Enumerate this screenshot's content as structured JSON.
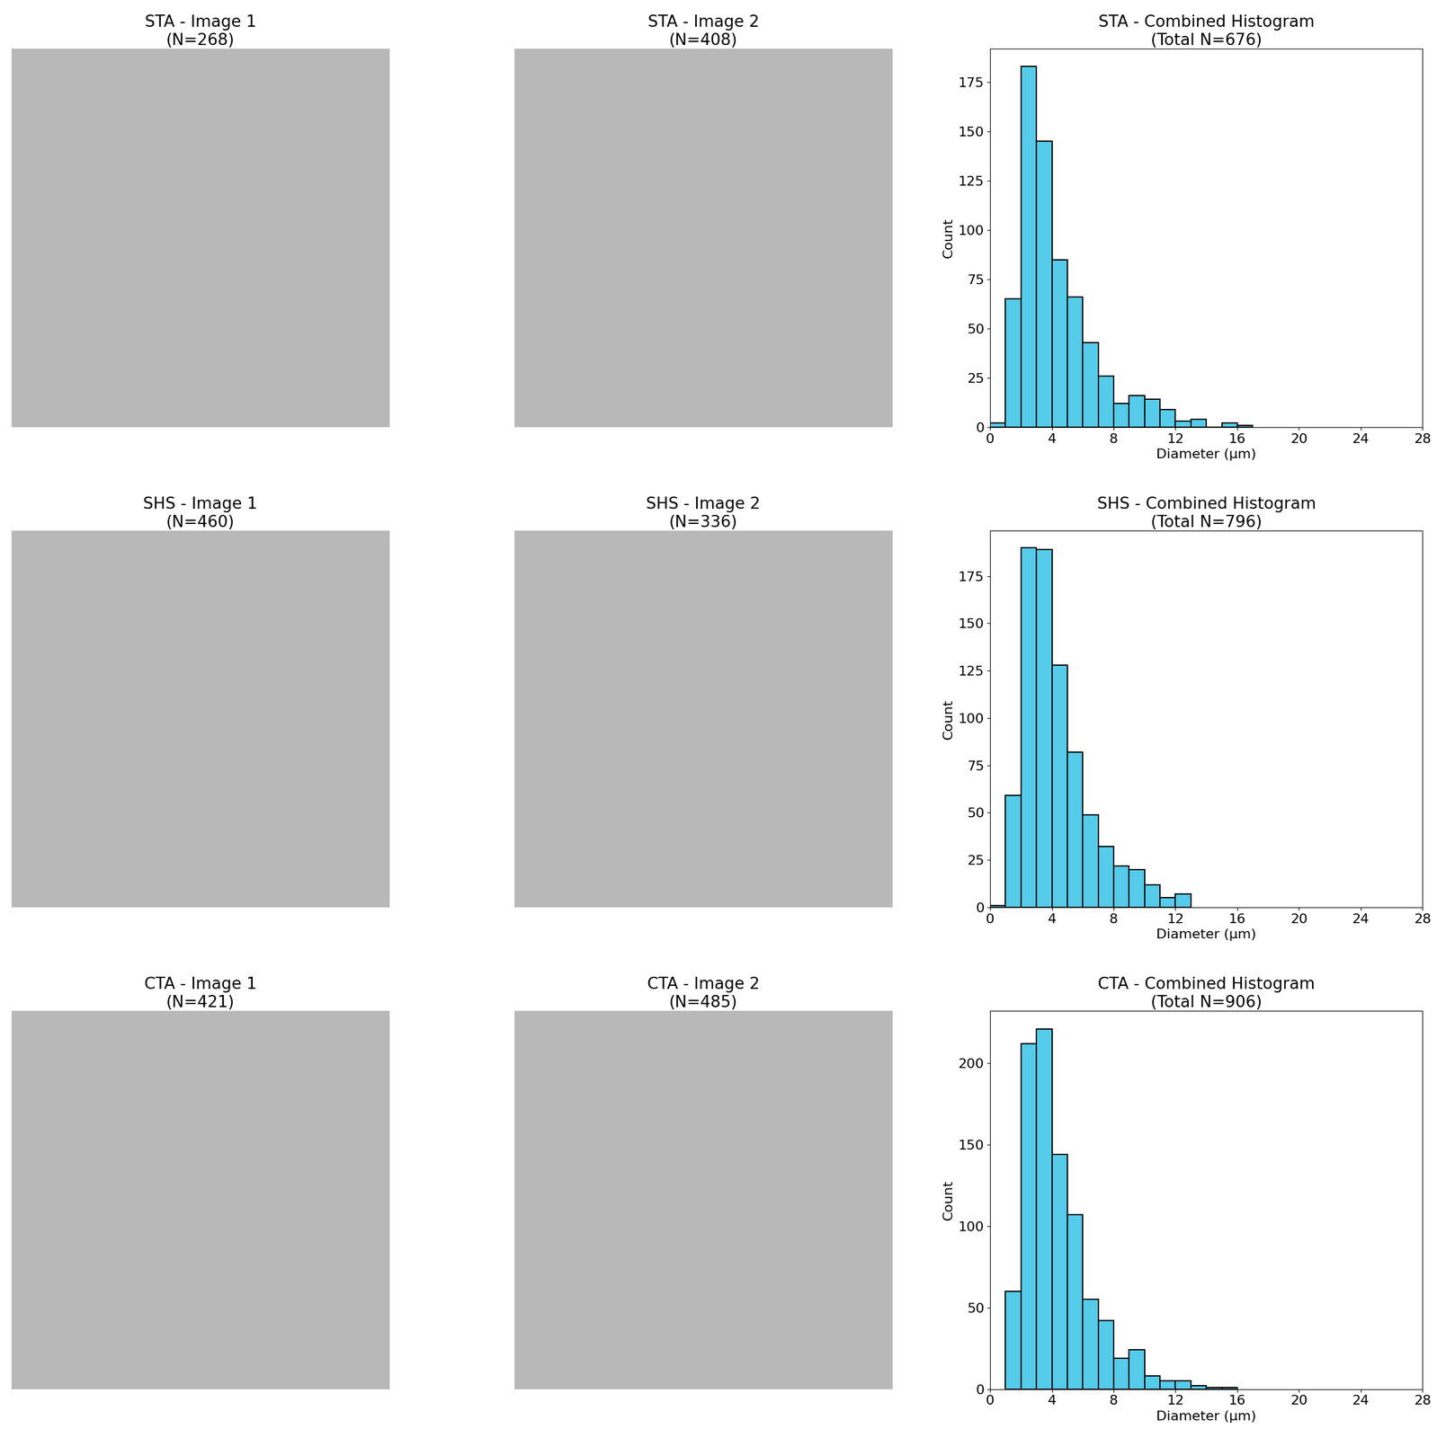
{
  "chart_data": [
    {
      "type": "image",
      "title": "STA - Image 1\n(N=268)"
    },
    {
      "type": "image",
      "title": "STA - Image 2\n(N=408)"
    },
    {
      "type": "histogram",
      "title": "STA - Combined Histogram\n(Total N=676)",
      "x_label": "Diameter (µm)",
      "y_label": "Count",
      "bins": [
        0,
        1,
        2,
        3,
        4,
        5,
        6,
        7,
        8,
        9,
        10,
        11,
        12,
        13,
        14,
        15,
        16,
        17
      ],
      "values": [
        2,
        65,
        183,
        145,
        85,
        66,
        43,
        26,
        12,
        16,
        14,
        9,
        3,
        4,
        0,
        2,
        1
      ],
      "color": "#56cbea",
      "xlim": [
        0,
        28
      ],
      "xticks": [
        0,
        4,
        8,
        12,
        16,
        20,
        24,
        28
      ],
      "ylim": [
        0,
        192
      ],
      "yticks": [
        0,
        25,
        50,
        75,
        100,
        125,
        150,
        175
      ]
    },
    {
      "type": "image",
      "title": "SHS - Image 1\n(N=460)"
    },
    {
      "type": "image",
      "title": "SHS - Image 2\n(N=336)"
    },
    {
      "type": "histogram",
      "title": "SHS - Combined Histogram\n(Total N=796)",
      "x_label": "Diameter (µm)",
      "y_label": "Count",
      "bins": [
        0,
        1,
        2,
        3,
        4,
        5,
        6,
        7,
        8,
        9,
        10,
        11,
        12,
        13
      ],
      "values": [
        1,
        59,
        190,
        189,
        128,
        82,
        49,
        32,
        22,
        20,
        12,
        5,
        7
      ],
      "color": "#56cbea",
      "xlim": [
        0,
        28
      ],
      "xticks": [
        0,
        4,
        8,
        12,
        16,
        20,
        24,
        28
      ],
      "ylim": [
        0,
        199
      ],
      "yticks": [
        0,
        25,
        50,
        75,
        100,
        125,
        150,
        175
      ]
    },
    {
      "type": "image",
      "title": "CTA - Image 1\n(N=421)"
    },
    {
      "type": "image",
      "title": "CTA - Image 2\n(N=485)"
    },
    {
      "type": "histogram",
      "title": "CTA - Combined Histogram\n(Total N=906)",
      "x_label": "Diameter (µm)",
      "y_label": "Count",
      "bins": [
        1,
        2,
        3,
        4,
        5,
        6,
        7,
        8,
        9,
        10,
        11,
        12,
        13,
        14,
        15,
        16
      ],
      "values": [
        60,
        212,
        221,
        144,
        107,
        55,
        42,
        19,
        24,
        8,
        5,
        5,
        2,
        1,
        1
      ],
      "color": "#56cbea",
      "xlim": [
        0,
        28
      ],
      "xticks": [
        0,
        4,
        8,
        12,
        16,
        20,
        24,
        28
      ],
      "ylim": [
        0,
        232
      ],
      "yticks": [
        0,
        50,
        100,
        150,
        200
      ]
    }
  ]
}
